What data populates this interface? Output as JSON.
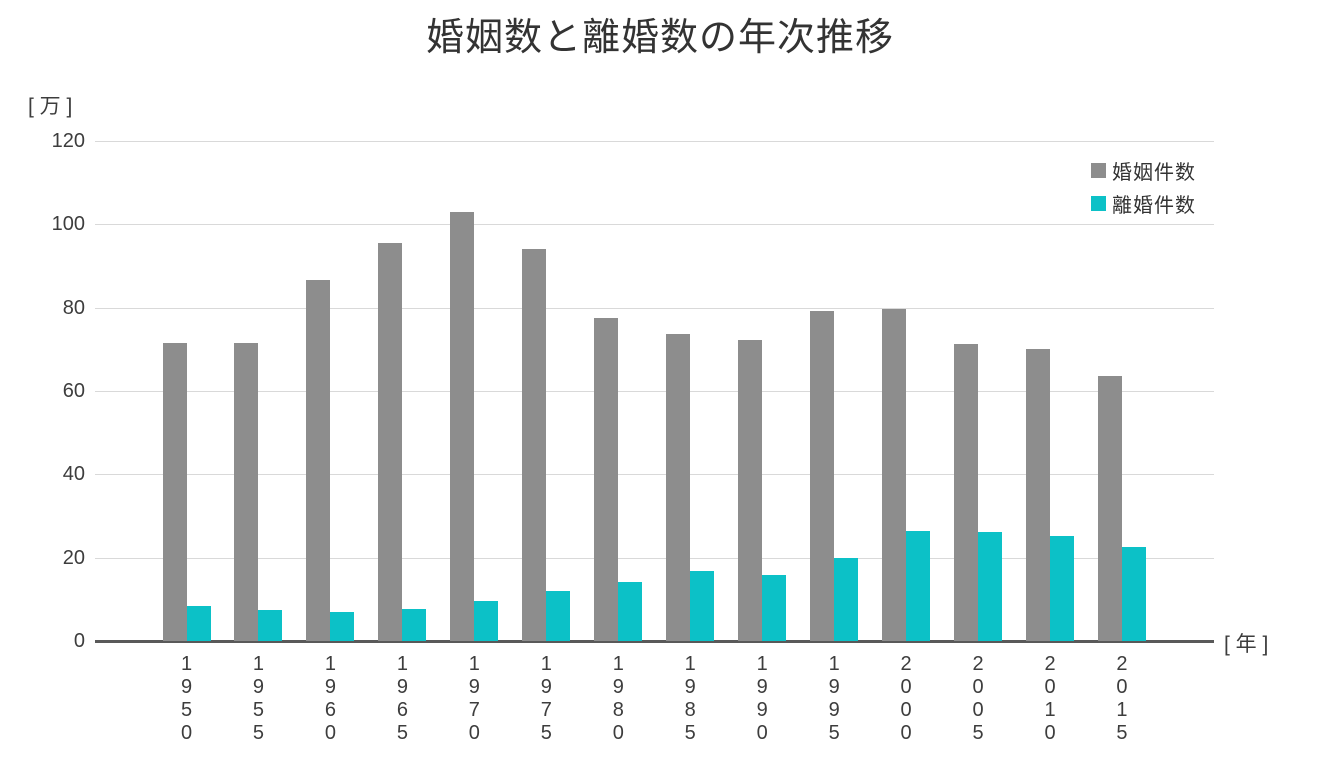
{
  "page": {
    "background": "#ffffff"
  },
  "colors": {
    "grid": "#d9d9d9",
    "axis": "#595959",
    "text": "#3d3d3d",
    "title": "#333333"
  },
  "chart_data": {
    "type": "bar",
    "title": "婚姻数と離婚数の年次推移",
    "y_unit_label": "[ 万 ]",
    "x_unit_label": "[ 年 ]",
    "categories": [
      "1950",
      "1955",
      "1960",
      "1965",
      "1970",
      "1975",
      "1980",
      "1985",
      "1990",
      "1995",
      "2000",
      "2005",
      "2010",
      "2015"
    ],
    "series": [
      {
        "name": "婚姻件数",
        "color": "#8d8d8d",
        "values": [
          71.5,
          71.5,
          86.6,
          95.5,
          102.9,
          94.2,
          77.5,
          73.6,
          72.2,
          79.2,
          79.8,
          71.4,
          70.0,
          63.5
        ]
      },
      {
        "name": "離婚件数",
        "color": "#0cc1c7",
        "values": [
          8.4,
          7.5,
          6.9,
          7.7,
          9.6,
          11.9,
          14.2,
          16.7,
          15.8,
          19.9,
          26.4,
          26.2,
          25.1,
          22.6
        ]
      }
    ],
    "ylim": [
      0,
      120
    ],
    "yticks": [
      0,
      20,
      40,
      60,
      80,
      100,
      120
    ],
    "grid": true,
    "legend_position": "top-right",
    "xlabel_orientation": "vertical-stacked-digits"
  }
}
